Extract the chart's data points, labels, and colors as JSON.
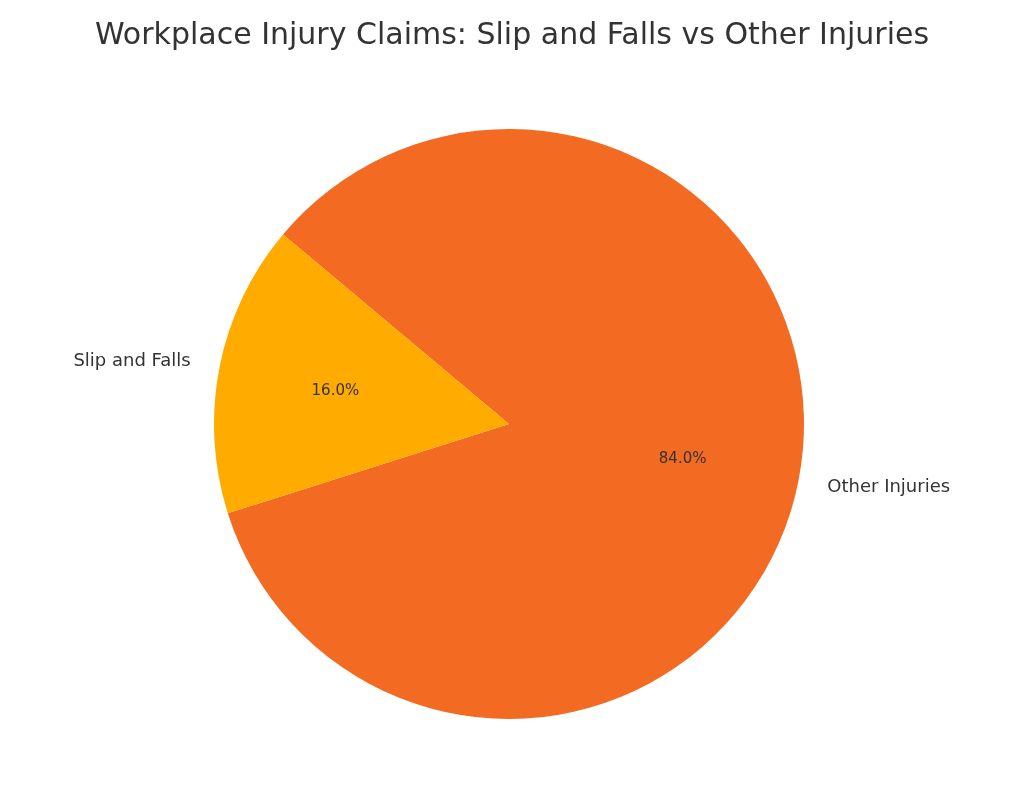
{
  "chart_data": {
    "type": "pie",
    "title": "Workplace Injury Claims: Slip and Falls vs Other Injuries",
    "categories": [
      "Slip and Falls",
      "Other Injuries"
    ],
    "values": [
      16.0,
      84.0
    ],
    "colors": [
      "#ffab00",
      "#f36a22"
    ],
    "value_labels": [
      "16.0%",
      "84.0%"
    ]
  }
}
